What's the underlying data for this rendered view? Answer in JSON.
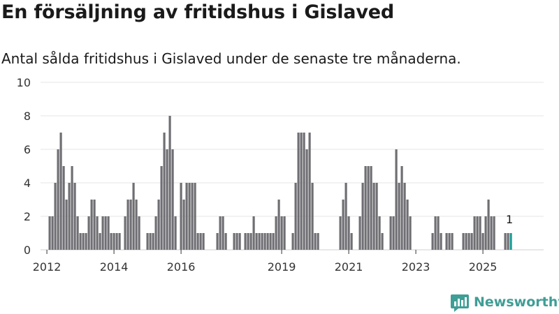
{
  "page": {
    "title": "En försäljning av fritidshus i Gislaved",
    "subtitle": "Antal sålda fritidshus i Gislaved under de senaste tre månaderna.",
    "brand": "Newsworthy",
    "brand_color": "#3f9e95"
  },
  "chart_data": {
    "type": "bar",
    "title": "En försäljning av fritidshus i Gislaved",
    "subtitle": "Antal sålda fritidshus i Gislaved under de senaste tre månaderna.",
    "xlabel": "",
    "ylabel": "",
    "ylim": [
      0,
      10
    ],
    "y_ticks": [
      0,
      2,
      4,
      6,
      8,
      10
    ],
    "x_ticks": [
      {
        "label": "2012",
        "month_index": 1
      },
      {
        "label": "2014",
        "month_index": 25
      },
      {
        "label": "2016",
        "month_index": 49
      },
      {
        "label": "2019",
        "month_index": 85
      },
      {
        "label": "2021",
        "month_index": 109
      },
      {
        "label": "2023",
        "month_index": 133
      },
      {
        "label": "2025",
        "month_index": 157
      }
    ],
    "grid": true,
    "bar_color": "#6f6e73",
    "highlight_color": "#1a9b94",
    "start_month_index": 1,
    "values": [
      0,
      2,
      2,
      4,
      6,
      7,
      5,
      3,
      4,
      5,
      4,
      2,
      1,
      1,
      1,
      2,
      3,
      3,
      2,
      1,
      2,
      2,
      2,
      1,
      1,
      1,
      1,
      0,
      2,
      3,
      3,
      4,
      3,
      2,
      0,
      0,
      1,
      1,
      1,
      2,
      3,
      5,
      7,
      6,
      8,
      6,
      2,
      0,
      4,
      3,
      4,
      4,
      4,
      4,
      1,
      1,
      1,
      0,
      0,
      0,
      0,
      1,
      2,
      2,
      1,
      0,
      0,
      1,
      1,
      1,
      0,
      1,
      1,
      1,
      2,
      1,
      1,
      1,
      1,
      1,
      1,
      1,
      2,
      3,
      2,
      2,
      0,
      0,
      1,
      4,
      7,
      7,
      7,
      6,
      7,
      4,
      1,
      1,
      0,
      0,
      0,
      0,
      0,
      0,
      0,
      2,
      3,
      4,
      2,
      1,
      0,
      0,
      2,
      4,
      5,
      5,
      5,
      4,
      4,
      2,
      1,
      0,
      0,
      2,
      2,
      6,
      4,
      5,
      4,
      3,
      2,
      0,
      0,
      0,
      0,
      0,
      0,
      0,
      1,
      2,
      2,
      1,
      0,
      1,
      1,
      1,
      0,
      0,
      0,
      1,
      1,
      1,
      1,
      2,
      2,
      2,
      1,
      2,
      3,
      2,
      2,
      0,
      0,
      0,
      1,
      1,
      1
    ],
    "highlight_last": true,
    "annotations": [
      {
        "text": "1",
        "target": "last_bar"
      }
    ]
  }
}
